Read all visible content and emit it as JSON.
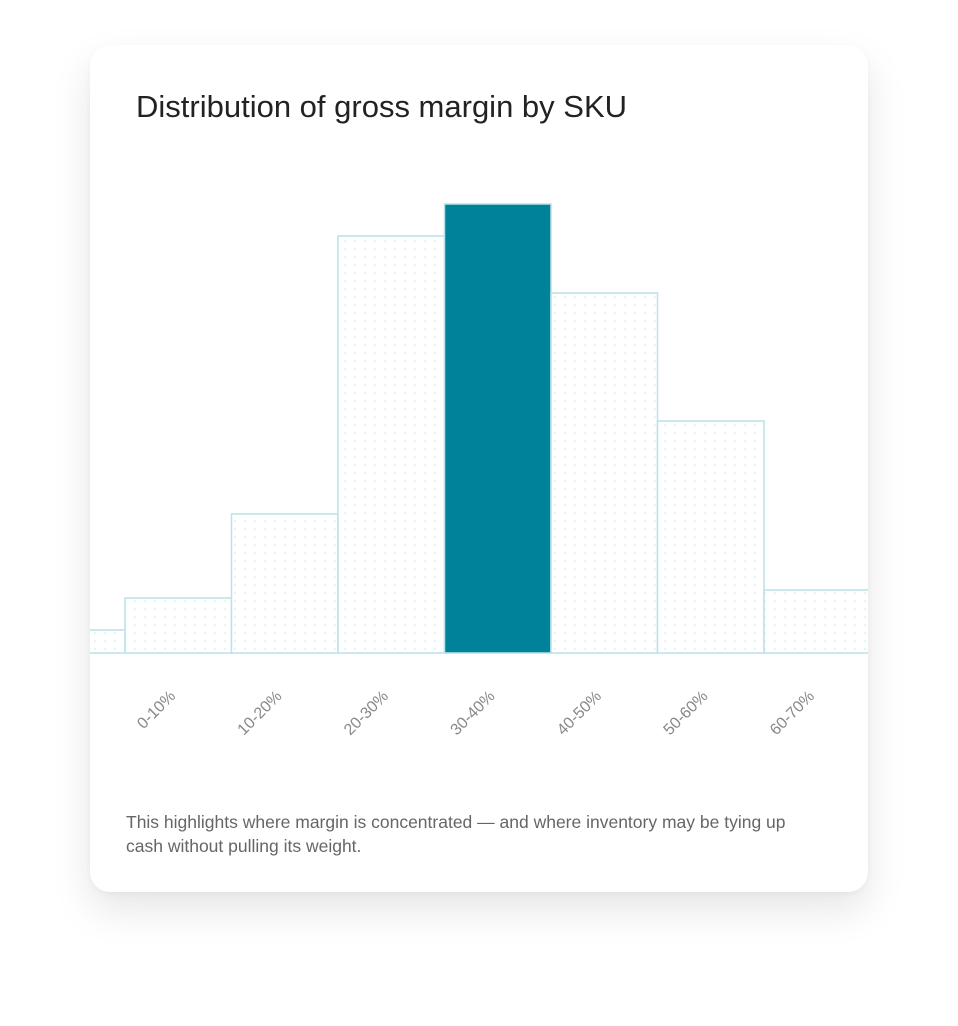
{
  "chart_data": {
    "type": "bar",
    "title": "Distribution of gross margin by SKU",
    "categories": [
      null,
      "0-10%",
      "10-20%",
      "20-30%",
      "30-40%",
      "40-50%",
      "50-60%",
      "60-70%"
    ],
    "values": [
      23,
      55,
      139,
      417,
      449,
      360,
      232,
      63
    ],
    "colors": [
      "#ffffff",
      "#ffffff",
      "#ffffff",
      "#ffffff",
      "#00829b",
      "#ffffff",
      "#ffffff",
      "#ffffff"
    ],
    "edge_color": "#b9e2ea",
    "ylim": [
      0,
      470
    ],
    "note": "This highlights where margin is concentrated — and where inventory may be tying up cash without pulling its weight."
  }
}
